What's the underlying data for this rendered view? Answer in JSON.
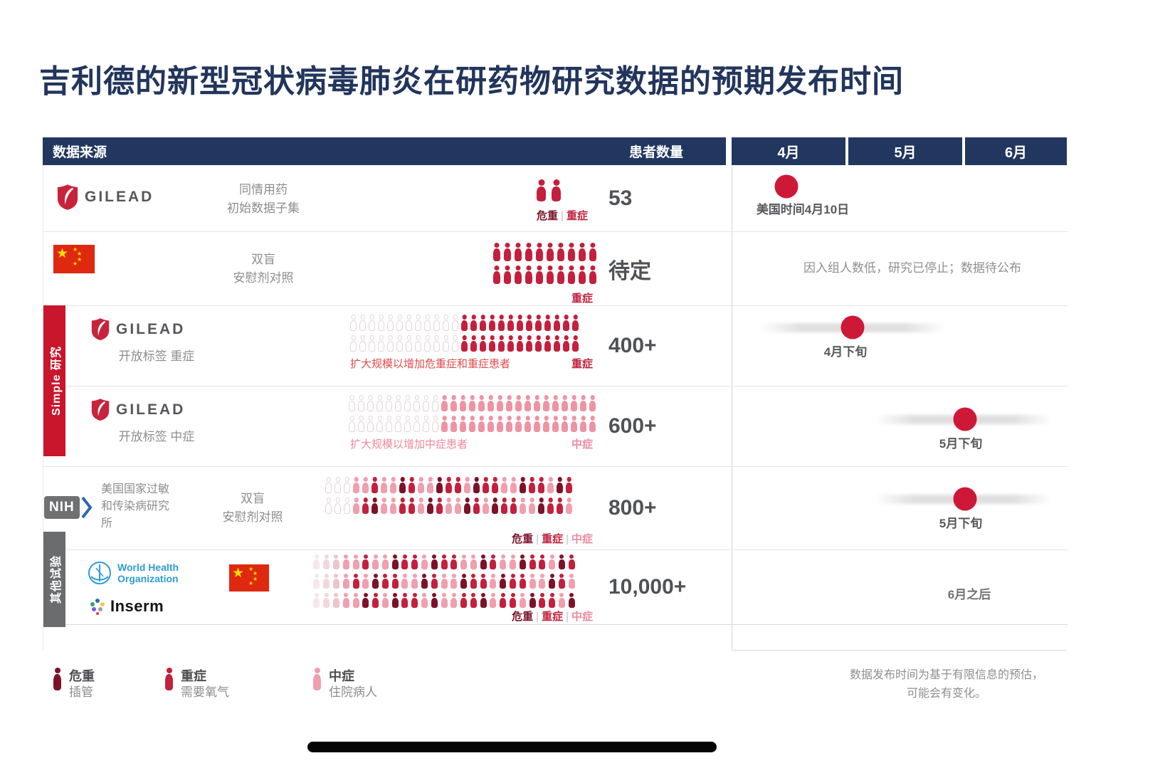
{
  "title": "吉利德的新型冠状病毒肺炎在研药物研究数据的预期发布时间",
  "header": {
    "source": "数据来源",
    "patients": "患者数量",
    "months": [
      "4月",
      "5月",
      "6月"
    ]
  },
  "sidebars": {
    "simple": "Simple 研究",
    "other": "其他试验"
  },
  "brands": {
    "gilead": "GILEAD",
    "nih": "NIH",
    "who": [
      "World Health",
      "Organization"
    ],
    "inserm": "Inserm"
  },
  "colors": {
    "navy": "#21375f",
    "crimson": "#c2203c",
    "pink": "#ef9fae",
    "dark_maroon": "#7c1228",
    "red_bar": "#c9162c",
    "gray_bar": "#6b6c6e",
    "timeline_dot": "#ce1838"
  },
  "rows": [
    {
      "desc": [
        "同情用药",
        "初始数据子集"
      ],
      "count": "53",
      "severity": [
        {
          "t": "危重",
          "c": "dark"
        },
        {
          "t": "|",
          "c": "sep"
        },
        {
          "t": "重症",
          "c": "red"
        }
      ],
      "icons": [
        [
          {
            "n": 2,
            "c": "#c2203c"
          }
        ]
      ],
      "timeline": {
        "dot": [
          1045,
          30
        ],
        "label": "美国时间4月10日",
        "label_pos": [
          1068,
          48
        ]
      }
    },
    {
      "desc": [
        "双盲",
        "安慰剂对照"
      ],
      "count": "待定",
      "severity": [
        {
          "t": "重症",
          "c": "red"
        }
      ],
      "icons": [
        [
          {
            "n": 10,
            "c": "#c2203c"
          }
        ],
        [
          {
            "n": 10,
            "c": "#c2203c"
          }
        ]
      ],
      "timeline": {
        "note": "因入组人数低，研究已停止；数据待公布",
        "note_pos": [
          1222,
          36
        ]
      }
    },
    {
      "desc": [
        "开放标签 重症"
      ],
      "count": "400+",
      "expand_note": "扩大规模以增加危重症和重症患者",
      "severity": [
        {
          "t": "重症",
          "c": "red"
        }
      ],
      "icons": [
        [
          {
            "n": 12,
            "o": 1
          },
          {
            "n": 13,
            "c": "#c2203c"
          }
        ],
        [
          {
            "n": 12,
            "o": 1
          },
          {
            "n": 13,
            "c": "#c2203c"
          }
        ]
      ],
      "timeline": {
        "blur": [
          1008,
          1268,
          24
        ],
        "dot": [
          1138,
          30
        ],
        "label": "4月下旬",
        "label_pos": [
          1128,
          50
        ]
      }
    },
    {
      "desc": [
        "开放标签 中症"
      ],
      "count": "600+",
      "expand_note": "扩大规模以增加中症患者",
      "severity": [
        {
          "t": "中症",
          "c": "pink"
        }
      ],
      "icons": [
        [
          {
            "n": 10,
            "o": 1
          },
          {
            "n": 17,
            "c": "#ee93a4"
          }
        ],
        [
          {
            "n": 10,
            "o": 1
          },
          {
            "n": 17,
            "c": "#ee93a4"
          }
        ]
      ],
      "timeline": {
        "blur": [
          1168,
          1420,
          40
        ],
        "dot": [
          1296,
          46
        ],
        "label": "5月下旬",
        "label_pos": [
          1290,
          66
        ]
      }
    },
    {
      "desc": [
        "美国国家过敏和传染病研究所",
        "双盲",
        "安慰剂对照"
      ],
      "count": "800+",
      "severity": [
        {
          "t": "危重",
          "c": "dark"
        },
        {
          "t": "|",
          "c": "sep"
        },
        {
          "t": "重症",
          "c": "red"
        },
        {
          "t": "|",
          "c": "sep"
        },
        {
          "t": "中症",
          "c": "pink"
        }
      ],
      "icons": [
        [
          {
            "n": 3,
            "o": 1
          },
          {
            "n": 2,
            "c": "#ef9fae"
          },
          {
            "n": 1,
            "c": "#c2203c"
          },
          {
            "n": 2,
            "c": "#ef9fae"
          },
          {
            "n": 1,
            "c": "#7c1228"
          },
          {
            "n": 1,
            "c": "#c2203c"
          },
          {
            "n": 2,
            "c": "#ef9fae"
          },
          {
            "n": 1,
            "c": "#7c1228"
          },
          {
            "n": 2,
            "c": "#c2203c"
          },
          {
            "n": 1,
            "c": "#ef9fae"
          },
          {
            "n": 1,
            "c": "#7c1228"
          },
          {
            "n": 2,
            "c": "#c2203c"
          },
          {
            "n": 2,
            "c": "#ef9fae"
          },
          {
            "n": 1,
            "c": "#7c1228"
          },
          {
            "n": 2,
            "c": "#c2203c"
          },
          {
            "n": 1,
            "c": "#ef9fae"
          },
          {
            "n": 1,
            "c": "#7c1228"
          },
          {
            "n": 1,
            "c": "#c2203c"
          }
        ],
        [
          {
            "n": 3,
            "o": 1
          },
          {
            "n": 1,
            "c": "#ef9fae"
          },
          {
            "n": 1,
            "c": "#c2203c"
          },
          {
            "n": 1,
            "c": "#7c1228"
          },
          {
            "n": 2,
            "c": "#ef9fae"
          },
          {
            "n": 2,
            "c": "#c2203c"
          },
          {
            "n": 1,
            "c": "#ef9fae"
          },
          {
            "n": 1,
            "c": "#7c1228"
          },
          {
            "n": 1,
            "c": "#c2203c"
          },
          {
            "n": 2,
            "c": "#ef9fae"
          },
          {
            "n": 1,
            "c": "#7c1228"
          },
          {
            "n": 1,
            "c": "#c2203c"
          },
          {
            "n": 1,
            "c": "#ef9fae"
          },
          {
            "n": 1,
            "c": "#7c1228"
          },
          {
            "n": 2,
            "c": "#c2203c"
          },
          {
            "n": 2,
            "c": "#ef9fae"
          },
          {
            "n": 1,
            "c": "#7c1228"
          },
          {
            "n": 2,
            "c": "#c2203c"
          },
          {
            "n": 1,
            "c": "#ef9fae"
          }
        ]
      ],
      "timeline": {
        "blur": [
          1168,
          1420,
          39
        ],
        "dot": [
          1296,
          45
        ],
        "label": "5月下旬",
        "label_pos": [
          1290,
          65
        ]
      }
    },
    {
      "desc": [],
      "count": "10,000+",
      "severity": [
        {
          "t": "危重",
          "c": "dark"
        },
        {
          "t": "|",
          "c": "sep"
        },
        {
          "t": "重症",
          "c": "red"
        },
        {
          "t": "|",
          "c": "sep"
        },
        {
          "t": "中症",
          "c": "pink"
        }
      ],
      "icons": [
        [
          {
            "n": 1,
            "c": "#f7e7ea"
          },
          {
            "n": 1,
            "c": "#f3d6dc"
          },
          {
            "n": 1,
            "c": "#eec4cd"
          },
          {
            "n": 2,
            "c": "#ef9fae"
          },
          {
            "n": 1,
            "c": "#c2203c"
          },
          {
            "n": 2,
            "c": "#ef9fae"
          },
          {
            "n": 1,
            "c": "#7c1228"
          },
          {
            "n": 2,
            "c": "#c2203c"
          },
          {
            "n": 1,
            "c": "#ef9fae"
          },
          {
            "n": 1,
            "c": "#7c1228"
          },
          {
            "n": 2,
            "c": "#c2203c"
          },
          {
            "n": 2,
            "c": "#ef9fae"
          },
          {
            "n": 1,
            "c": "#7c1228"
          },
          {
            "n": 1,
            "c": "#c2203c"
          },
          {
            "n": 2,
            "c": "#ef9fae"
          },
          {
            "n": 1,
            "c": "#7c1228"
          },
          {
            "n": 2,
            "c": "#c2203c"
          },
          {
            "n": 1,
            "c": "#ef9fae"
          },
          {
            "n": 1,
            "c": "#7c1228"
          },
          {
            "n": 1,
            "c": "#c2203c"
          }
        ],
        [
          {
            "n": 1,
            "c": "#f7e7ea"
          },
          {
            "n": 1,
            "c": "#f3d6dc"
          },
          {
            "n": 1,
            "c": "#eec4cd"
          },
          {
            "n": 1,
            "c": "#ef9fae"
          },
          {
            "n": 1,
            "c": "#c2203c"
          },
          {
            "n": 1,
            "c": "#ef9fae"
          },
          {
            "n": 1,
            "c": "#7c1228"
          },
          {
            "n": 2,
            "c": "#c2203c"
          },
          {
            "n": 2,
            "c": "#ef9fae"
          },
          {
            "n": 1,
            "c": "#7c1228"
          },
          {
            "n": 1,
            "c": "#c2203c"
          },
          {
            "n": 2,
            "c": "#ef9fae"
          },
          {
            "n": 1,
            "c": "#7c1228"
          },
          {
            "n": 2,
            "c": "#c2203c"
          },
          {
            "n": 1,
            "c": "#ef9fae"
          },
          {
            "n": 1,
            "c": "#7c1228"
          },
          {
            "n": 2,
            "c": "#c2203c"
          },
          {
            "n": 2,
            "c": "#ef9fae"
          },
          {
            "n": 1,
            "c": "#7c1228"
          },
          {
            "n": 1,
            "c": "#c2203c"
          },
          {
            "n": 1,
            "c": "#ef9fae"
          }
        ],
        [
          {
            "n": 1,
            "c": "#f7e7ea"
          },
          {
            "n": 1,
            "c": "#f3d6dc"
          },
          {
            "n": 1,
            "c": "#eec4cd"
          },
          {
            "n": 2,
            "c": "#ef9fae"
          },
          {
            "n": 1,
            "c": "#7c1228"
          },
          {
            "n": 1,
            "c": "#c2203c"
          },
          {
            "n": 1,
            "c": "#ef9fae"
          },
          {
            "n": 1,
            "c": "#7c1228"
          },
          {
            "n": 2,
            "c": "#c2203c"
          },
          {
            "n": 1,
            "c": "#ef9fae"
          },
          {
            "n": 1,
            "c": "#7c1228"
          },
          {
            "n": 2,
            "c": "#ef9fae"
          },
          {
            "n": 2,
            "c": "#c2203c"
          },
          {
            "n": 1,
            "c": "#7c1228"
          },
          {
            "n": 1,
            "c": "#ef9fae"
          },
          {
            "n": 2,
            "c": "#c2203c"
          },
          {
            "n": 1,
            "c": "#ef9fae"
          },
          {
            "n": 1,
            "c": "#7c1228"
          },
          {
            "n": 2,
            "c": "#c2203c"
          },
          {
            "n": 1,
            "c": "#ef9fae"
          },
          {
            "n": 1,
            "c": "#7c1228"
          }
        ]
      ],
      "timeline": {
        "note": "6月之后",
        "note_pos": [
          1302,
          48
        ],
        "bold": true
      }
    }
  ],
  "legend": [
    {
      "title": "危重",
      "sub": "插管",
      "color": "#7c1228"
    },
    {
      "title": "重症",
      "sub": "需要氧气",
      "color": "#c2203c"
    },
    {
      "title": "中症",
      "sub": "住院病人",
      "color": "#ef9fae"
    }
  ],
  "disclaimer": [
    "数据发布时间为基于有限信息的预估，",
    "可能会有变化。"
  ]
}
